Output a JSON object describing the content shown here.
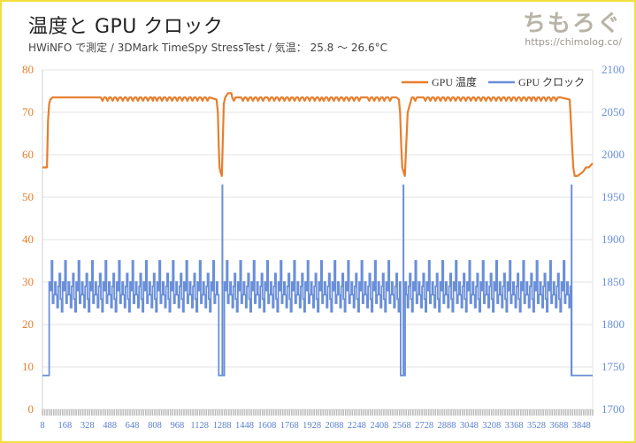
{
  "header": {
    "title": "温度と GPU クロック",
    "subtitle": "HWiNFO で測定 / 3DMark TimeSpy StressTest / 気温： 25.8 ～ 26.6°C"
  },
  "brand": {
    "logo": "ちもろぐ",
    "url": "https://chimolog.co/"
  },
  "chart_data": {
    "type": "line",
    "title": "温度と GPU クロック",
    "grid": true,
    "legend_position": "top-right",
    "x_tick_labels": [
      "8",
      "168",
      "328",
      "488",
      "648",
      "808",
      "968",
      "1128",
      "1288",
      "1448",
      "1608",
      "1768",
      "1928",
      "2088",
      "2248",
      "2408",
      "2568",
      "2728",
      "2888",
      "3048",
      "3208",
      "3368",
      "3528",
      "3688",
      "3848"
    ],
    "x_range": [
      8,
      3928
    ],
    "y_left": {
      "range": [
        0,
        80
      ],
      "ticks": [
        0,
        10,
        20,
        30,
        40,
        50,
        60,
        70,
        80
      ],
      "color": "#e87e2d"
    },
    "y_right": {
      "range": [
        1700,
        2100
      ],
      "ticks": [
        1700,
        1750,
        1800,
        1850,
        1900,
        1950,
        2000,
        2050,
        2100
      ],
      "color": "#6a8fd9"
    },
    "series": [
      {
        "name": "GPU 温度",
        "axis": "left",
        "color": "#e87e2d",
        "x": [
          8,
          40,
          48,
          56,
          64,
          80,
          104,
          200,
          400,
          800,
          1100,
          1200,
          1248,
          1258,
          1264,
          1270,
          1276,
          1286,
          1294,
          1300,
          1310,
          1330,
          1360,
          1400,
          1600,
          2000,
          2300,
          2460,
          2500,
          2530,
          2548,
          2556,
          2564,
          2572,
          2580,
          2590,
          2610,
          2640,
          2700,
          3000,
          3300,
          3500,
          3700,
          3764,
          3770,
          3782,
          3790,
          3800,
          3820,
          3860,
          3880,
          3900,
          3928
        ],
        "values": [
          57,
          57,
          68,
          72,
          73,
          73.5,
          73.5,
          73.5,
          73.5,
          73.5,
          73.5,
          73.5,
          73,
          70,
          62,
          57,
          56,
          55,
          65,
          72,
          73.5,
          74.5,
          73.5,
          73.5,
          73.5,
          73.5,
          73.5,
          73.5,
          73.5,
          73.5,
          73,
          70,
          62,
          57,
          56,
          55,
          70,
          73.5,
          73.5,
          73.5,
          73.5,
          73.5,
          73.5,
          73,
          70,
          62,
          57,
          55,
          55,
          56,
          57,
          57,
          58
        ]
      },
      {
        "name": "GPU クロック",
        "axis": "right",
        "color": "#6a8fd9",
        "baseline": 1740,
        "idle_segments": [
          [
            8,
            48
          ],
          [
            1264,
            1296
          ],
          [
            2556,
            2588
          ],
          [
            3776,
            3928
          ]
        ],
        "spikes": [
          1290,
          2580,
          3778
        ],
        "spike_value": 1965,
        "active_range": [
          1815,
          1875
        ]
      }
    ]
  }
}
